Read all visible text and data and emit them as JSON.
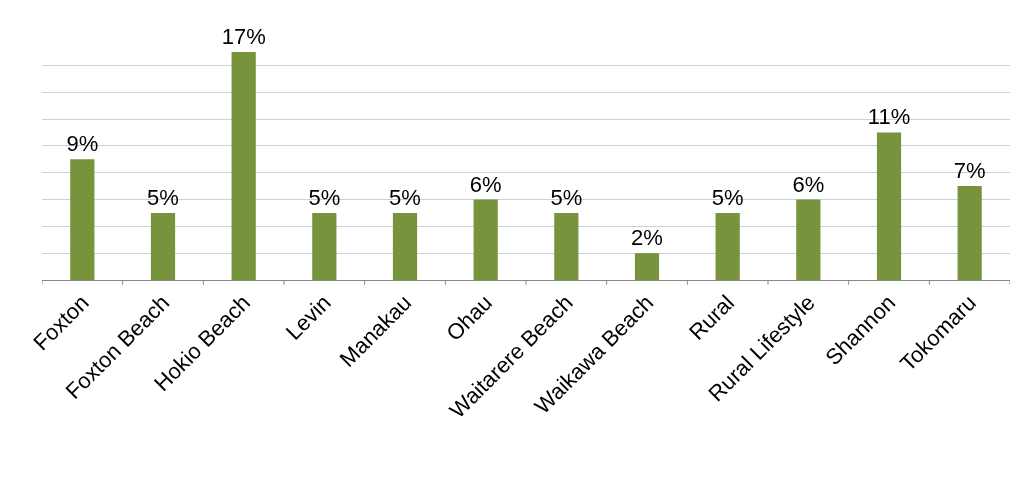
{
  "chart_data": {
    "type": "bar",
    "categories": [
      "Foxton",
      "Foxton Beach",
      "Hokio Beach",
      "Levin",
      "Manakau",
      "Ohau",
      "Waitarere Beach",
      "Waikawa Beach",
      "Rural",
      "Rural Lifestyle",
      "Shannon",
      "Tokomaru"
    ],
    "values": [
      9,
      5,
      17,
      5,
      5,
      6,
      5,
      2,
      5,
      6,
      11,
      7
    ],
    "value_labels": [
      "9%",
      "5%",
      "17%",
      "5%",
      "5%",
      "6%",
      "5%",
      "2%",
      "5%",
      "6%",
      "11%",
      "7%"
    ],
    "color": "#77933c",
    "yticks": [
      {
        "value": 0,
        "label": null
      },
      {
        "value": 2,
        "label": null
      },
      {
        "value": 4,
        "label": null
      },
      {
        "value": 6,
        "label": null
      },
      {
        "value": 8,
        "label": null
      },
      {
        "value": 10,
        "label": null
      },
      {
        "value": 12,
        "label": null
      },
      {
        "value": 14,
        "label": null
      },
      {
        "value": 16,
        "label": null
      }
    ],
    "grid": "y",
    "tick_labels": "x",
    "legend": false
  }
}
